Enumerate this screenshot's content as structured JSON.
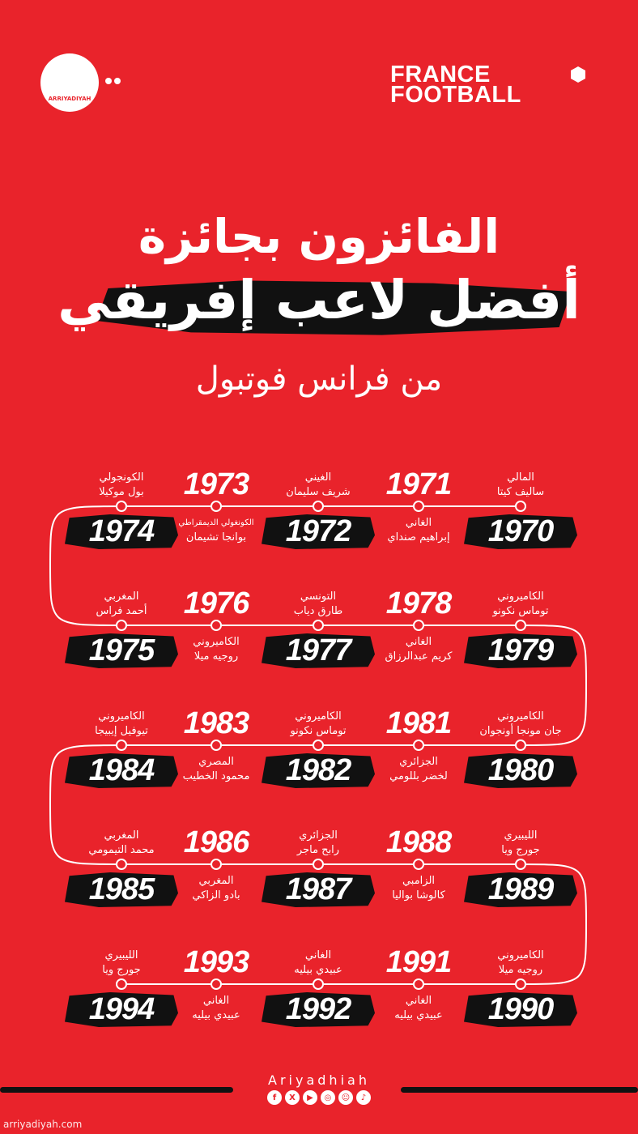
{
  "header": {
    "logo_text": "ARRIYADIYAH",
    "brand": "FRANCE FOOTBALL",
    "brand_line1": "FRANCE",
    "brand_line2": "FOOTBALL"
  },
  "title": {
    "line1": "الفائزون بجائزة",
    "line2": "أفضل لاعب إفريقي",
    "line3": "من فرانس فوتبول"
  },
  "colors": {
    "background": "#e9232b",
    "text": "#ffffff",
    "brush": "#111111"
  },
  "timeline": [
    [
      {
        "year": "1970",
        "country": "المالي",
        "name": "ساليف كيتا",
        "year_pos": "below"
      },
      {
        "year": "1971",
        "country": "الغاني",
        "name": "إبراهيم صنداي",
        "year_pos": "above"
      },
      {
        "year": "1972",
        "country": "الغيني",
        "name": "شريف سليمان",
        "year_pos": "below"
      },
      {
        "year": "1973",
        "country": "الكونغولي الديمقراطي",
        "name": "بوانجا تشيمان",
        "year_pos": "above"
      },
      {
        "year": "1974",
        "country": "الكونجولي",
        "name": "بول موكيلا",
        "year_pos": "below"
      }
    ],
    [
      {
        "year": "1979",
        "country": "الكاميروني",
        "name": "توماس نكونو",
        "year_pos": "below"
      },
      {
        "year": "1978",
        "country": "الغاني",
        "name": "كريم عبدالرزاق",
        "year_pos": "above"
      },
      {
        "year": "1977",
        "country": "التونسي",
        "name": "طارق دياب",
        "year_pos": "below"
      },
      {
        "year": "1976",
        "country": "الكاميروني",
        "name": "روجيه ميلا",
        "year_pos": "above"
      },
      {
        "year": "1975",
        "country": "المغربي",
        "name": "أحمد فراس",
        "year_pos": "below"
      }
    ],
    [
      {
        "year": "1980",
        "country": "الكاميروني",
        "name": "جان مونجا أونجوان",
        "year_pos": "below"
      },
      {
        "year": "1981",
        "country": "الجزائري",
        "name": "لخضر بللومي",
        "year_pos": "above"
      },
      {
        "year": "1982",
        "country": "الكاميروني",
        "name": "توماس نكونو",
        "year_pos": "below"
      },
      {
        "year": "1983",
        "country": "المصري",
        "name": "محمود الخطيب",
        "year_pos": "above"
      },
      {
        "year": "1984",
        "country": "الكاميروني",
        "name": "تيوفيل إيبيجا",
        "year_pos": "below"
      }
    ],
    [
      {
        "year": "1989",
        "country": "الليبيري",
        "name": "جورج ويا",
        "year_pos": "below"
      },
      {
        "year": "1988",
        "country": "الزامبي",
        "name": "كالوشا بواليا",
        "year_pos": "above"
      },
      {
        "year": "1987",
        "country": "الجزائري",
        "name": "رابح ماجر",
        "year_pos": "below"
      },
      {
        "year": "1986",
        "country": "المغربي",
        "name": "بادو الزاكي",
        "year_pos": "above"
      },
      {
        "year": "1985",
        "country": "المغربي",
        "name": "محمد التيمومي",
        "year_pos": "below"
      }
    ],
    [
      {
        "year": "1990",
        "country": "الكاميروني",
        "name": "روجيه ميلا",
        "year_pos": "below"
      },
      {
        "year": "1991",
        "country": "الغاني",
        "name": "عبيدي بيليه",
        "year_pos": "above"
      },
      {
        "year": "1992",
        "country": "الغاني",
        "name": "عبيدي بيليه",
        "year_pos": "below"
      },
      {
        "year": "1993",
        "country": "الغاني",
        "name": "عبيدي بيليه",
        "year_pos": "above"
      },
      {
        "year": "1994",
        "country": "الليبيري",
        "name": "جورج ويا",
        "year_pos": "below"
      }
    ]
  ],
  "footer": {
    "brand": "Ariyadhiah",
    "social": [
      {
        "icon": "facebook-icon",
        "glyph": "f"
      },
      {
        "icon": "x-icon",
        "glyph": "X"
      },
      {
        "icon": "youtube-icon",
        "glyph": "▶"
      },
      {
        "icon": "instagram-icon",
        "glyph": "◎"
      },
      {
        "icon": "snapchat-icon",
        "glyph": "☺"
      },
      {
        "icon": "tiktok-icon",
        "glyph": "♪"
      }
    ],
    "watermark": "arriyadiyah.com"
  }
}
